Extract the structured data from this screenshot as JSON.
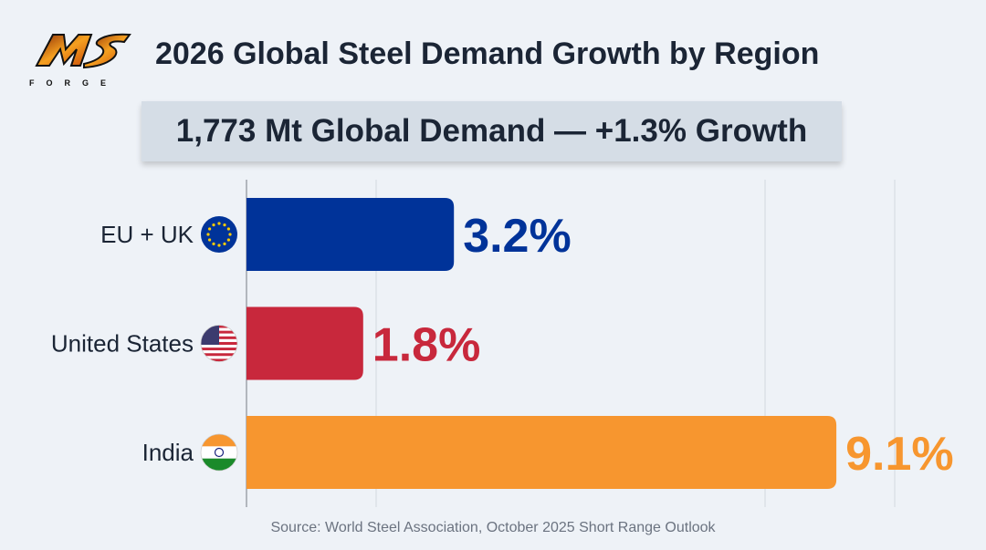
{
  "header": {
    "title": "2026 Global Steel Demand Growth by Region",
    "logo_text": "MS FORGE",
    "banner": "1,773 Mt Global Demand — +1.3% Growth"
  },
  "chart_data": {
    "type": "bar",
    "orientation": "horizontal",
    "title": "2026 Global Steel Demand Growth by Region",
    "categories": [
      "EU + UK",
      "United States",
      "India"
    ],
    "values": [
      3.2,
      1.8,
      9.1
    ],
    "value_labels": [
      "3.2%",
      "1.8%",
      "9.1%"
    ],
    "flags": [
      "eu-flag-icon",
      "us-flag-icon",
      "india-flag-icon"
    ],
    "colors": [
      "#003399",
      "#C8283C",
      "#F7962F"
    ],
    "unit": "%",
    "xlim": [
      0,
      10
    ],
    "grid": true,
    "legend": "none"
  },
  "footer": {
    "source": "Source: World Steel Association, October 2025 Short Range Outlook"
  }
}
